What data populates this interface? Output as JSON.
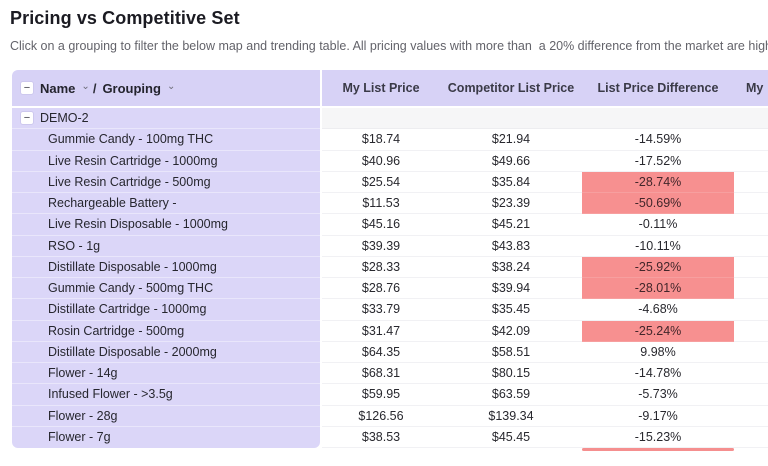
{
  "page": {
    "title": "Pricing vs Competitive Set",
    "subtitle": "Click on a grouping to filter the below map and trending table. All pricing values with more than  a 20% difference from the market are highl"
  },
  "table": {
    "header": {
      "collapse_icon": "−",
      "name_label": "Name",
      "separator": "/",
      "grouping_label": "Grouping",
      "sort_icon": "⌄",
      "columns": [
        "My List Price",
        "Competitor List Price",
        "List Price Difference",
        "My"
      ]
    },
    "group": {
      "collapse_icon": "−",
      "label": "DEMO-2"
    },
    "rows": [
      {
        "name": "Gummie Candy - 100mg THC",
        "my_price": "$18.74",
        "competitor_price": "$21.94",
        "difference": "-14.59%",
        "highlighted": false
      },
      {
        "name": "Live Resin Cartridge - 1000mg",
        "my_price": "$40.96",
        "competitor_price": "$49.66",
        "difference": "-17.52%",
        "highlighted": false
      },
      {
        "name": "Live Resin Cartridge - 500mg",
        "my_price": "$25.54",
        "competitor_price": "$35.84",
        "difference": "-28.74%",
        "highlighted": true
      },
      {
        "name": "Rechargeable Battery -",
        "my_price": "$11.53",
        "competitor_price": "$23.39",
        "difference": "-50.69%",
        "highlighted": true
      },
      {
        "name": "Live Resin Disposable - 1000mg",
        "my_price": "$45.16",
        "competitor_price": "$45.21",
        "difference": "-0.11%",
        "highlighted": false
      },
      {
        "name": "RSO - 1g",
        "my_price": "$39.39",
        "competitor_price": "$43.83",
        "difference": "-10.11%",
        "highlighted": false
      },
      {
        "name": "Distillate Disposable - 1000mg",
        "my_price": "$28.33",
        "competitor_price": "$38.24",
        "difference": "-25.92%",
        "highlighted": true
      },
      {
        "name": "Gummie Candy - 500mg THC",
        "my_price": "$28.76",
        "competitor_price": "$39.94",
        "difference": "-28.01%",
        "highlighted": true
      },
      {
        "name": "Distillate Cartridge - 1000mg",
        "my_price": "$33.79",
        "competitor_price": "$35.45",
        "difference": "-4.68%",
        "highlighted": false
      },
      {
        "name": "Rosin Cartridge - 500mg",
        "my_price": "$31.47",
        "competitor_price": "$42.09",
        "difference": "-25.24%",
        "highlighted": true
      },
      {
        "name": "Distillate Disposable - 2000mg",
        "my_price": "$64.35",
        "competitor_price": "$58.51",
        "difference": "9.98%",
        "highlighted": false
      },
      {
        "name": "Flower - 14g",
        "my_price": "$68.31",
        "competitor_price": "$80.15",
        "difference": "-14.78%",
        "highlighted": false
      },
      {
        "name": "Infused Flower - >3.5g",
        "my_price": "$59.95",
        "competitor_price": "$63.59",
        "difference": "-5.73%",
        "highlighted": false
      },
      {
        "name": "Flower - 28g",
        "my_price": "$126.56",
        "competitor_price": "$139.34",
        "difference": "-9.17%",
        "highlighted": false
      },
      {
        "name": "Flower - 7g",
        "my_price": "$38.53",
        "competitor_price": "$45.45",
        "difference": "-15.23%",
        "highlighted": false
      }
    ]
  },
  "colors": {
    "header_bg": "#d7d2f6",
    "name_cell_bg": "#dbd6f8",
    "highlight_bg": "#f79090",
    "group_row_right_bg": "#f6f6f7",
    "partial_highlight_bar": "#f58f8f"
  }
}
